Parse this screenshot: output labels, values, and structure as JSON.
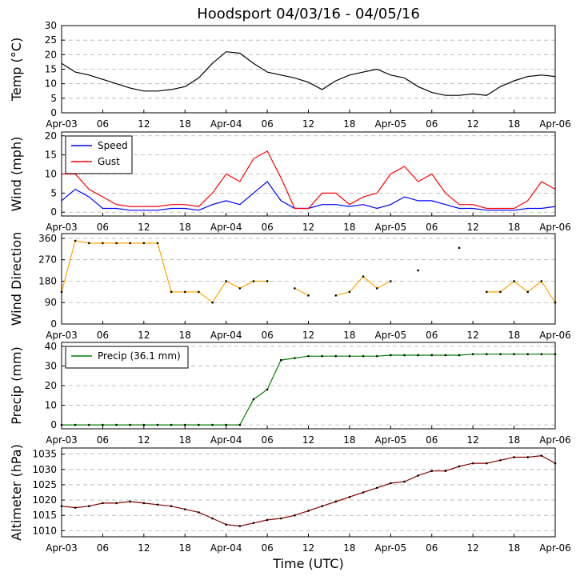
{
  "chart_data": [
    {
      "type": "line",
      "title": "Hoodsport 04/03/16 - 04/05/16",
      "ylabel": "Temp (°C)",
      "x": [
        0,
        2,
        4,
        6,
        8,
        10,
        12,
        14,
        16,
        18,
        20,
        22,
        24,
        26,
        28,
        30,
        32,
        34,
        36,
        38,
        40,
        42,
        44,
        46,
        48,
        50,
        52,
        54,
        56,
        58,
        60,
        62,
        64,
        66,
        68,
        70,
        72
      ],
      "series": [
        {
          "name": "Temp",
          "color": "#000000",
          "markers": false,
          "values": [
            17,
            14,
            13,
            11.5,
            10,
            8.5,
            7.5,
            7.5,
            8,
            9,
            12,
            17,
            21,
            20.5,
            17,
            14,
            13,
            12,
            10.5,
            8,
            11,
            13,
            14,
            15,
            13,
            12,
            9,
            7,
            6,
            6,
            6.5,
            6,
            9,
            11,
            12.5,
            13,
            12.5
          ]
        }
      ],
      "xlim": [
        0,
        72
      ],
      "xticks": [
        {
          "value": 0,
          "label": "Apr-03"
        },
        {
          "value": 6,
          "label": "06"
        },
        {
          "value": 12,
          "label": "12"
        },
        {
          "value": 18,
          "label": "18"
        },
        {
          "value": 24,
          "label": "Apr-04"
        },
        {
          "value": 30,
          "label": "06"
        },
        {
          "value": 36,
          "label": "12"
        },
        {
          "value": 42,
          "label": "18"
        },
        {
          "value": 48,
          "label": "Apr-05"
        },
        {
          "value": 54,
          "label": "06"
        },
        {
          "value": 60,
          "label": "12"
        },
        {
          "value": 66,
          "label": "18"
        },
        {
          "value": 72,
          "label": "Apr-06"
        }
      ],
      "ylim": [
        0,
        30
      ],
      "yticks": [
        0,
        5,
        10,
        15,
        20,
        25,
        30
      ],
      "grid": true
    },
    {
      "type": "line",
      "ylabel": "Wind (mph)",
      "legend": "upper left",
      "x": [
        0,
        2,
        4,
        6,
        8,
        10,
        12,
        14,
        16,
        18,
        20,
        22,
        24,
        26,
        28,
        30,
        32,
        34,
        36,
        38,
        40,
        42,
        44,
        46,
        48,
        50,
        52,
        54,
        56,
        58,
        60,
        62,
        64,
        66,
        68,
        70,
        72
      ],
      "series": [
        {
          "name": "Speed",
          "color": "#0000ff",
          "markers": false,
          "values": [
            3,
            6,
            4,
            1,
            1,
            0.5,
            0.5,
            0.5,
            1,
            1,
            0.5,
            2,
            3,
            2,
            5,
            8,
            3,
            1,
            1,
            2,
            2,
            1.5,
            2,
            1,
            2,
            4,
            3,
            3,
            2,
            1,
            1,
            0.5,
            0.5,
            0.5,
            1,
            1,
            1.5
          ]
        },
        {
          "name": "Gust",
          "color": "#ff0000",
          "markers": false,
          "values": [
            10,
            10,
            6,
            4,
            2,
            1.5,
            1.5,
            1.5,
            2,
            2,
            1.5,
            5,
            10,
            8,
            14,
            16,
            9,
            1,
            1,
            5,
            5,
            2,
            4,
            5,
            10,
            12,
            8,
            10,
            5,
            2,
            2,
            1,
            1,
            1,
            3,
            8,
            6
          ]
        }
      ],
      "xlim": [
        0,
        72
      ],
      "xticks": [
        {
          "value": 0,
          "label": "Apr-03"
        },
        {
          "value": 6,
          "label": "06"
        },
        {
          "value": 12,
          "label": "12"
        },
        {
          "value": 18,
          "label": "18"
        },
        {
          "value": 24,
          "label": "Apr-04"
        },
        {
          "value": 30,
          "label": "06"
        },
        {
          "value": 36,
          "label": "12"
        },
        {
          "value": 42,
          "label": "18"
        },
        {
          "value": 48,
          "label": "Apr-05"
        },
        {
          "value": 54,
          "label": "06"
        },
        {
          "value": 60,
          "label": "12"
        },
        {
          "value": 66,
          "label": "18"
        },
        {
          "value": 72,
          "label": "Apr-06"
        }
      ],
      "ylim": [
        -1,
        21
      ],
      "yticks": [
        0,
        5,
        10,
        15,
        20
      ],
      "grid": true
    },
    {
      "type": "line",
      "ylabel": "Wind Direction",
      "x": [
        0,
        2,
        4,
        6,
        8,
        10,
        12,
        14,
        16,
        18,
        20,
        22,
        24,
        26,
        28,
        30,
        32,
        34,
        36,
        38,
        40,
        42,
        44,
        46,
        48,
        50,
        52,
        54,
        56,
        58,
        60,
        62,
        64,
        66,
        68,
        70,
        72
      ],
      "series": [
        {
          "name": "Direction",
          "color": "#ffa500",
          "markers": true,
          "values": [
            135,
            350,
            340,
            340,
            340,
            340,
            340,
            340,
            135,
            135,
            135,
            90,
            180,
            150,
            180,
            180,
            null,
            150,
            120,
            null,
            120,
            135,
            200,
            150,
            180,
            null,
            225,
            null,
            null,
            320,
            null,
            135,
            135,
            180,
            135,
            180,
            90
          ]
        }
      ],
      "xlim": [
        0,
        72
      ],
      "xticks": [
        {
          "value": 0,
          "label": "Apr-03"
        },
        {
          "value": 6,
          "label": "06"
        },
        {
          "value": 12,
          "label": "12"
        },
        {
          "value": 18,
          "label": "18"
        },
        {
          "value": 24,
          "label": "Apr-04"
        },
        {
          "value": 30,
          "label": "06"
        },
        {
          "value": 36,
          "label": "12"
        },
        {
          "value": 42,
          "label": "18"
        },
        {
          "value": 48,
          "label": "Apr-05"
        },
        {
          "value": 54,
          "label": "06"
        },
        {
          "value": 60,
          "label": "12"
        },
        {
          "value": 66,
          "label": "18"
        },
        {
          "value": 72,
          "label": "Apr-06"
        }
      ],
      "ylim": [
        0,
        380
      ],
      "yticks": [
        0,
        90,
        180,
        270,
        360
      ],
      "grid": true
    },
    {
      "type": "line",
      "ylabel": "Precip (mm)",
      "legend": "upper left",
      "x": [
        0,
        2,
        4,
        6,
        8,
        10,
        12,
        14,
        16,
        18,
        20,
        22,
        24,
        26,
        28,
        30,
        32,
        34,
        36,
        38,
        40,
        42,
        44,
        46,
        48,
        50,
        52,
        54,
        56,
        58,
        60,
        62,
        64,
        66,
        68,
        70,
        72
      ],
      "series": [
        {
          "name": "Precip (36.1 mm)",
          "color": "#008000",
          "markers": true,
          "values": [
            0,
            0,
            0,
            0,
            0,
            0,
            0,
            0,
            0,
            0,
            0,
            0,
            0,
            0,
            13,
            18,
            33,
            34,
            35,
            35,
            35,
            35,
            35,
            35,
            35.5,
            35.5,
            35.5,
            35.5,
            35.5,
            35.5,
            36,
            36,
            36,
            36,
            36,
            36,
            36
          ]
        }
      ],
      "xlim": [
        0,
        72
      ],
      "xticks": [
        {
          "value": 0,
          "label": "Apr-03"
        },
        {
          "value": 6,
          "label": "06"
        },
        {
          "value": 12,
          "label": "12"
        },
        {
          "value": 18,
          "label": "18"
        },
        {
          "value": 24,
          "label": "Apr-04"
        },
        {
          "value": 30,
          "label": "06"
        },
        {
          "value": 36,
          "label": "12"
        },
        {
          "value": 42,
          "label": "18"
        },
        {
          "value": 48,
          "label": "Apr-05"
        },
        {
          "value": 54,
          "label": "06"
        },
        {
          "value": 60,
          "label": "12"
        },
        {
          "value": 66,
          "label": "18"
        },
        {
          "value": 72,
          "label": "Apr-06"
        }
      ],
      "ylim": [
        -2,
        42
      ],
      "yticks": [
        0,
        10,
        20,
        30,
        40
      ],
      "grid": true
    },
    {
      "type": "line",
      "ylabel": "Altimeter (hPa)",
      "xlabel": "Time (UTC)",
      "x": [
        0,
        2,
        4,
        6,
        8,
        10,
        12,
        14,
        16,
        18,
        20,
        22,
        24,
        26,
        28,
        30,
        32,
        34,
        36,
        38,
        40,
        42,
        44,
        46,
        48,
        50,
        52,
        54,
        56,
        58,
        60,
        62,
        64,
        66,
        68,
        70,
        72
      ],
      "series": [
        {
          "name": "Altimeter",
          "color": "#8b0000",
          "markers": true,
          "values": [
            1018,
            1017.5,
            1018,
            1019,
            1019,
            1019.5,
            1019,
            1018.5,
            1018,
            1017,
            1016,
            1014,
            1012,
            1011.5,
            1012.5,
            1013.5,
            1014,
            1015,
            1016.5,
            1018,
            1019.5,
            1021,
            1022.5,
            1024,
            1025.5,
            1026,
            1028,
            1029.5,
            1029.5,
            1031,
            1032,
            1032,
            1033,
            1034,
            1034,
            1034.5,
            1032
          ]
        }
      ],
      "xlim": [
        0,
        72
      ],
      "xticks": [
        {
          "value": 0,
          "label": "Apr-03"
        },
        {
          "value": 6,
          "label": "06"
        },
        {
          "value": 12,
          "label": "12"
        },
        {
          "value": 18,
          "label": "18"
        },
        {
          "value": 24,
          "label": "Apr-04"
        },
        {
          "value": 30,
          "label": "06"
        },
        {
          "value": 36,
          "label": "12"
        },
        {
          "value": 42,
          "label": "18"
        },
        {
          "value": 48,
          "label": "Apr-05"
        },
        {
          "value": 54,
          "label": "06"
        },
        {
          "value": 60,
          "label": "12"
        },
        {
          "value": 66,
          "label": "18"
        },
        {
          "value": 72,
          "label": "Apr-06"
        }
      ],
      "ylim": [
        1008,
        1037
      ],
      "yticks": [
        1010,
        1015,
        1020,
        1025,
        1030,
        1035
      ],
      "grid": true
    }
  ]
}
